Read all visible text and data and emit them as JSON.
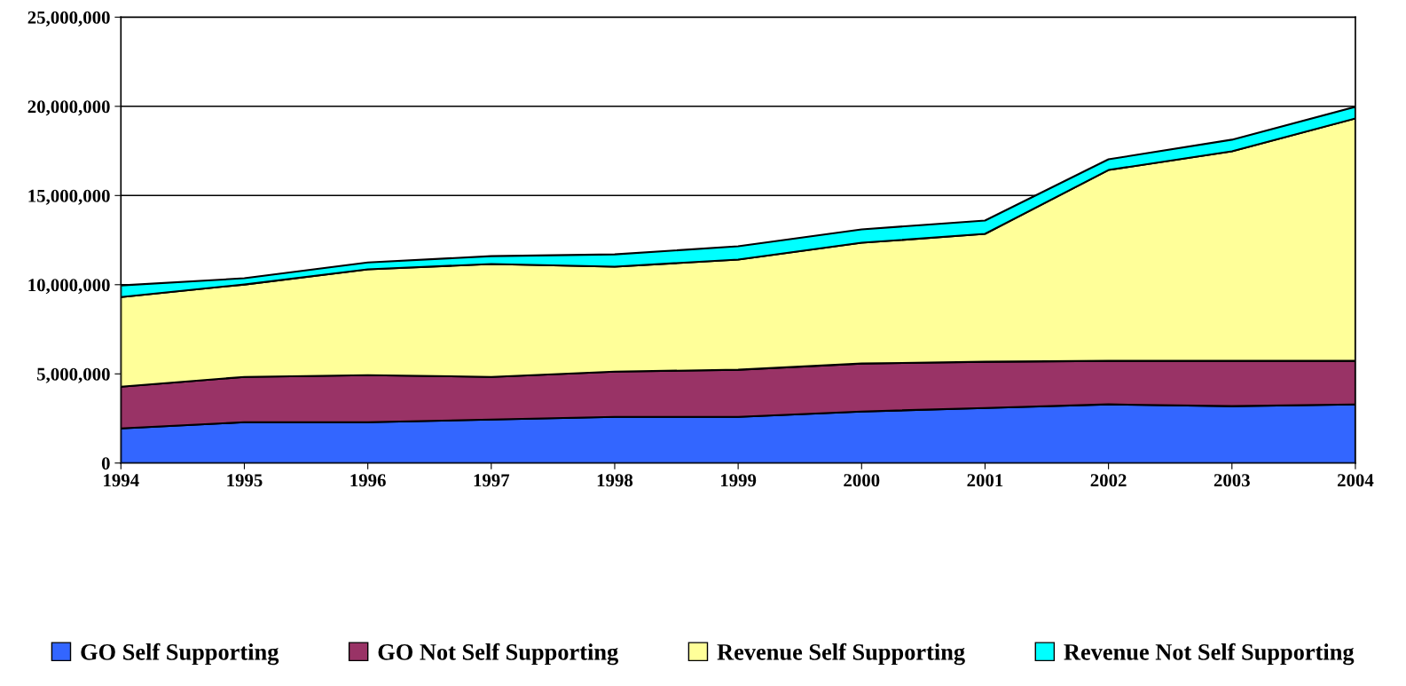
{
  "chart_data": {
    "type": "area",
    "stacked": true,
    "categories": [
      "1994",
      "1995",
      "1996",
      "1997",
      "1998",
      "1999",
      "2000",
      "2001",
      "2002",
      "2003",
      "2004"
    ],
    "series": [
      {
        "name": "GO Self Supporting",
        "color": "#3366ff",
        "values": [
          1940000,
          2290000,
          2290000,
          2440000,
          2590000,
          2590000,
          2890000,
          3090000,
          3290000,
          3190000,
          3290000
        ]
      },
      {
        "name": "GO Not Self Supporting",
        "color": "#993366",
        "values": [
          2340000,
          2540000,
          2640000,
          2390000,
          2540000,
          2640000,
          2690000,
          2590000,
          2440000,
          2540000,
          2440000
        ]
      },
      {
        "name": "Revenue Self Supporting",
        "color": "#ffff99",
        "values": [
          5030000,
          5180000,
          5930000,
          6330000,
          5880000,
          6180000,
          6770000,
          7170000,
          10700000,
          11750000,
          13590000
        ]
      },
      {
        "name": "Revenue Not Self Supporting",
        "color": "#00ffff",
        "values": [
          650000,
          350000,
          390000,
          440000,
          690000,
          740000,
          750000,
          750000,
          600000,
          650000,
          650000
        ]
      }
    ],
    "ylim": [
      0,
      25000000
    ],
    "yticks": [
      {
        "value": 0,
        "label": "0"
      },
      {
        "value": 5000000,
        "label": "5,000,000"
      },
      {
        "value": 10000000,
        "label": "10,000,000"
      },
      {
        "value": 15000000,
        "label": "15,000,000"
      },
      {
        "value": 20000000,
        "label": "20,000,000"
      },
      {
        "value": 25000000,
        "label": "25,000,000"
      }
    ],
    "grid": "y",
    "legend": "bottom"
  }
}
